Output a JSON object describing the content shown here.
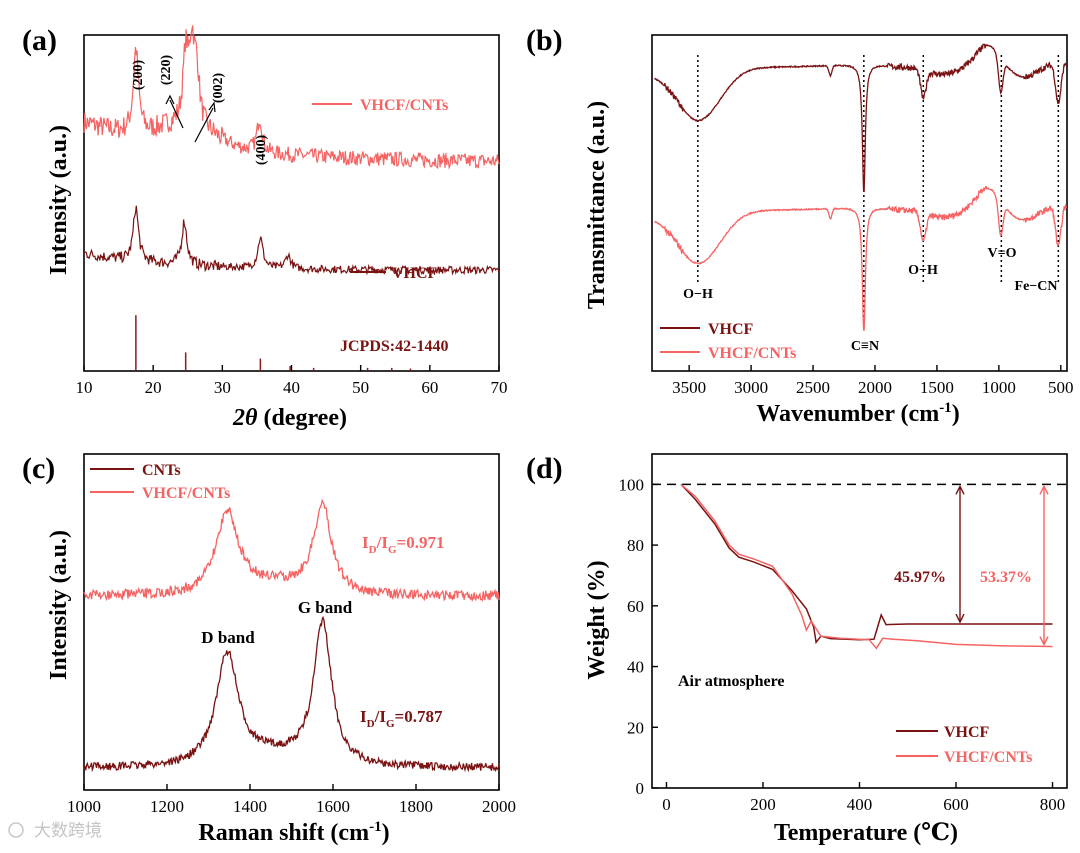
{
  "figure": {
    "watermark": "大数跨境"
  },
  "colors": {
    "dark": "#7a1212",
    "light": "#f56363",
    "axis": "#000000"
  },
  "chart_data": [
    {
      "panel": "(a)",
      "type": "line",
      "title": "",
      "xlabel": "2θ (degree)",
      "ylabel": "Intensity (a.u.)",
      "xlim": [
        10,
        70
      ],
      "xticks": [
        "10",
        "20",
        "30",
        "40",
        "50",
        "60",
        "70"
      ],
      "series": [
        {
          "name": "VHCF/CNTs",
          "color": "#f56363",
          "baseline": 0.62,
          "peaks": [
            [
              17.5,
              0.25
            ],
            [
              24.7,
              0.2
            ],
            [
              25.6,
              0.22
            ],
            [
              26.3,
              0.15
            ],
            [
              35.4,
              0.1
            ]
          ]
        },
        {
          "name": "VHCF",
          "color": "#7a1212",
          "baseline": 0.3,
          "peaks": [
            [
              17.5,
              0.16
            ],
            [
              24.5,
              0.13
            ],
            [
              35.5,
              0.09
            ],
            [
              39.5,
              0.04
            ]
          ]
        }
      ],
      "reference": {
        "name": "JCPDS:42-1440",
        "lines": [
          [
            17.5,
            0.9
          ],
          [
            24.7,
            0.3
          ],
          [
            35.5,
            0.2
          ],
          [
            39.8,
            0.08
          ],
          [
            43.2,
            0.05
          ],
          [
            51.0,
            0.05
          ],
          [
            54.5,
            0.05
          ],
          [
            57.2,
            0.04
          ]
        ]
      },
      "peak_labels": [
        "(200)",
        "(220)",
        "(002)",
        "(400)"
      ]
    },
    {
      "panel": "(b)",
      "type": "line",
      "xlabel": "Wavenumber (cm-1)",
      "ylabel": "Transmittance (a.u.)",
      "xlim": [
        3800,
        450
      ],
      "xticks": [
        "3500",
        "3000",
        "2500",
        "2000",
        "1500",
        "1000",
        "500"
      ],
      "series": [
        {
          "name": "VHCF",
          "color": "#7a1212"
        },
        {
          "name": "VHCF/CNTs",
          "color": "#f56363"
        }
      ],
      "band_labels": [
        "O−H",
        "C≡N",
        "O−H",
        "V=O",
        "Fe−CN"
      ],
      "band_positions": [
        3430,
        2090,
        1610,
        980,
        520
      ]
    },
    {
      "panel": "(c)",
      "type": "line",
      "xlabel": "Raman shift (cm-1)",
      "ylabel": "Intensity (a.u.)",
      "xlim": [
        1000,
        2000
      ],
      "xticks": [
        "1000",
        "1200",
        "1400",
        "1600",
        "1800",
        "2000"
      ],
      "series": [
        {
          "name": "CNTs",
          "color": "#7a1212",
          "ratio": "0.787",
          "D": 1345,
          "G": 1575
        },
        {
          "name": "VHCF/CNTs",
          "color": "#f56363",
          "ratio": "0.971",
          "D": 1345,
          "G": 1575
        }
      ],
      "annotations": [
        "D band",
        "G band"
      ],
      "ratio_prefix": "I",
      "ratio_sub_d": "D",
      "ratio_sub_g": "G"
    },
    {
      "panel": "(d)",
      "type": "line",
      "xlabel": "Temperature (℃)",
      "ylabel": "Weight (%)",
      "xlim": [
        -30,
        830
      ],
      "ylim": [
        0,
        110
      ],
      "xticks": [
        "0",
        "200",
        "400",
        "600",
        "800"
      ],
      "yticks": [
        "0",
        "20",
        "40",
        "60",
        "80",
        "100"
      ],
      "series": [
        {
          "name": "VHCF",
          "color": "#7a1212",
          "final": 54.0,
          "loss_label": "45.97%",
          "points": [
            [
              30,
              100
            ],
            [
              60,
              95
            ],
            [
              100,
              87
            ],
            [
              130,
              79
            ],
            [
              150,
              76
            ],
            [
              180,
              74.5
            ],
            [
              220,
              72
            ],
            [
              260,
              65
            ],
            [
              290,
              59
            ],
            [
              305,
              53
            ],
            [
              310,
              48
            ],
            [
              320,
              50
            ],
            [
              340,
              49.2
            ],
            [
              400,
              48.8
            ],
            [
              430,
              49
            ],
            [
              445,
              57
            ],
            [
              455,
              53.8
            ],
            [
              500,
              54
            ],
            [
              800,
              54
            ]
          ]
        },
        {
          "name": "VHCF/CNTs",
          "color": "#f56363",
          "final": 46.6,
          "loss_label": "53.37%",
          "points": [
            [
              30,
              100
            ],
            [
              60,
              96
            ],
            [
              100,
              88
            ],
            [
              130,
              80
            ],
            [
              150,
              77
            ],
            [
              180,
              75.5
            ],
            [
              220,
              73
            ],
            [
              260,
              64
            ],
            [
              280,
              57
            ],
            [
              290,
              52
            ],
            [
              300,
              55
            ],
            [
              320,
              50
            ],
            [
              360,
              49.3
            ],
            [
              420,
              48.8
            ],
            [
              435,
              46
            ],
            [
              448,
              49.3
            ],
            [
              470,
              49
            ],
            [
              520,
              48.5
            ],
            [
              600,
              47.3
            ],
            [
              700,
              46.8
            ],
            [
              800,
              46.6
            ]
          ]
        }
      ],
      "reference_line": 100,
      "annotation": "Air atmosphere"
    }
  ]
}
